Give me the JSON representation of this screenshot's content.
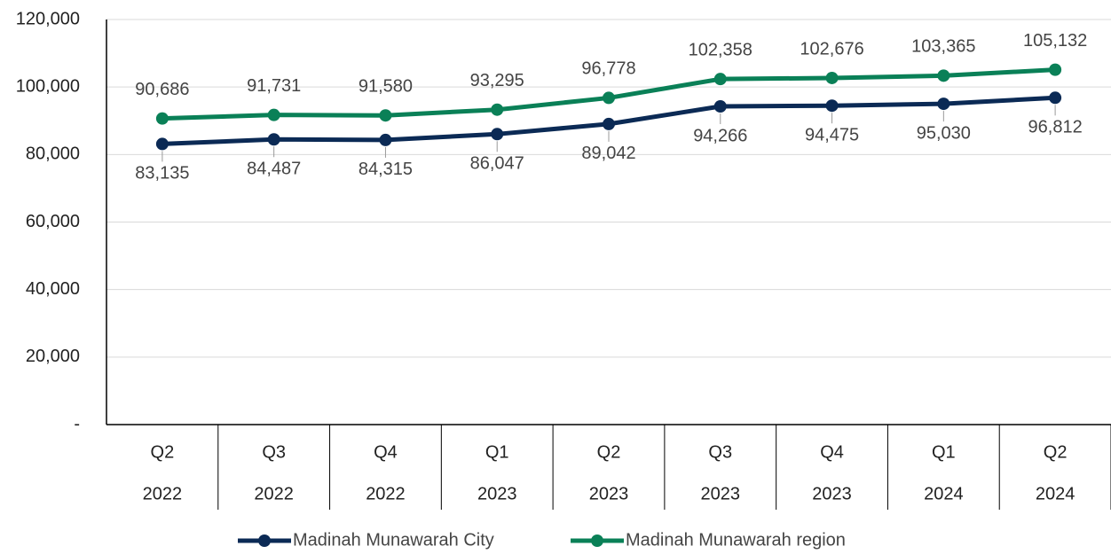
{
  "chart_data": {
    "type": "line",
    "categories": [
      [
        "Q2",
        "2022"
      ],
      [
        "Q3",
        "2022"
      ],
      [
        "Q4",
        "2022"
      ],
      [
        "Q1",
        "2023"
      ],
      [
        "Q2",
        "2023"
      ],
      [
        "Q3",
        "2023"
      ],
      [
        "Q4",
        "2023"
      ],
      [
        "Q1",
        "2024"
      ],
      [
        "Q2",
        "2024"
      ]
    ],
    "series": [
      {
        "name": "Madinah Munawarah City",
        "color": "#0b2a55",
        "values": [
          83135,
          84487,
          84315,
          86047,
          89042,
          94266,
          94475,
          95030,
          96812
        ],
        "value_labels": [
          "83,135",
          "84,487",
          "84,315",
          "86,047",
          "89,042",
          "94,266",
          "94,475",
          "95,030",
          "96,812"
        ]
      },
      {
        "name": "Madinah Munawarah region",
        "color": "#0a8057",
        "values": [
          90686,
          91731,
          91580,
          93295,
          96778,
          102358,
          102676,
          103365,
          105132
        ],
        "value_labels": [
          "90,686",
          "91,731",
          "91,580",
          "93,295",
          "96,778",
          "102,358",
          "102,676",
          "103,365",
          "105,132"
        ]
      }
    ],
    "ylim": [
      0,
      120000
    ],
    "yticks": [
      {
        "value": 0,
        "label": "-"
      },
      {
        "value": 20000,
        "label": "20,000"
      },
      {
        "value": 40000,
        "label": "40,000"
      },
      {
        "value": 60000,
        "label": "60,000"
      },
      {
        "value": 80000,
        "label": "80,000"
      },
      {
        "value": 100000,
        "label": "100,000"
      },
      {
        "value": 120000,
        "label": "120,000"
      }
    ],
    "grid": true
  }
}
